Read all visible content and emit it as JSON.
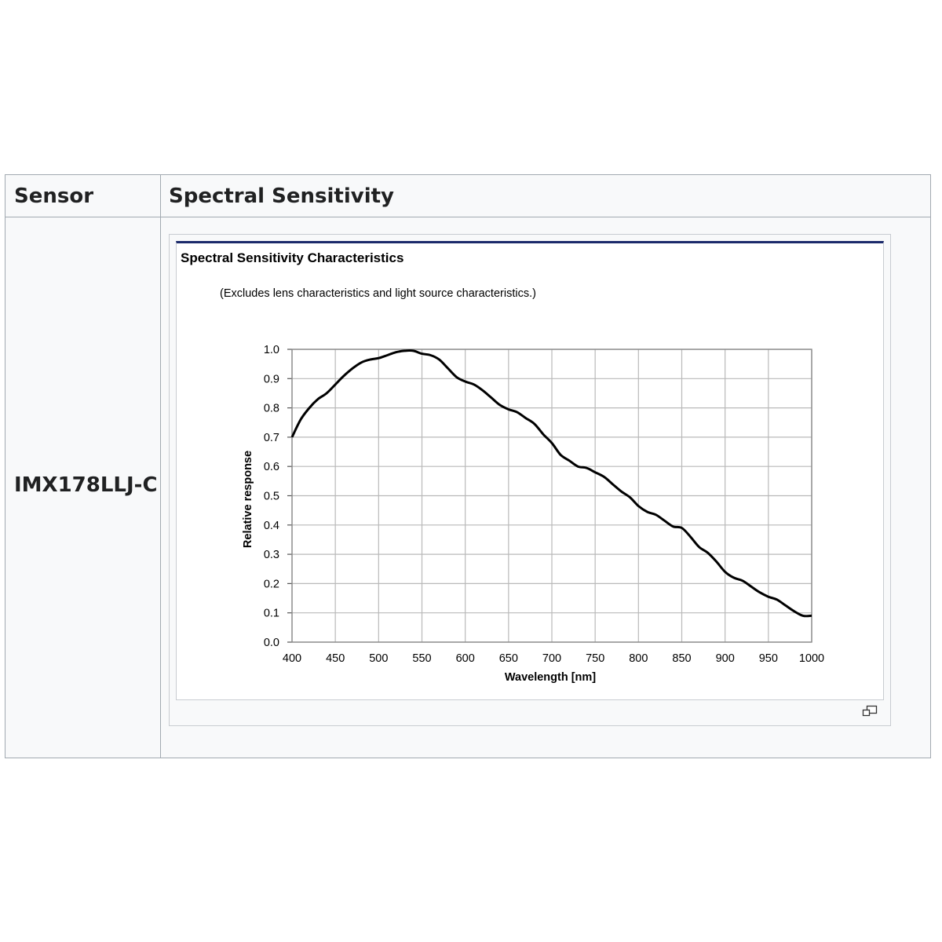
{
  "table": {
    "header_sensor": "Sensor",
    "header_spectral": "Spectral Sensitivity",
    "sensor_name": "IMX178LLJ-C"
  },
  "figure": {
    "title": "Spectral Sensitivity Characteristics",
    "note": "(Excludes lens characteristics and light source characteristics.)",
    "magnify_icon": "magnify-clip-icon"
  },
  "chart_data": {
    "type": "line",
    "title": "Spectral Sensitivity Characteristics",
    "subtitle": "(Excludes lens characteristics and light source characteristics.)",
    "xlabel": "Wavelength [nm]",
    "ylabel": "Relative response",
    "xlim": [
      400,
      1000
    ],
    "ylim": [
      0.0,
      1.0
    ],
    "xticks": [
      "400",
      "450",
      "500",
      "550",
      "600",
      "650",
      "700",
      "750",
      "800",
      "850",
      "900",
      "950",
      "1000"
    ],
    "yticks": [
      "0.0",
      "0.1",
      "0.2",
      "0.3",
      "0.4",
      "0.5",
      "0.6",
      "0.7",
      "0.8",
      "0.9",
      "1.0"
    ],
    "grid": true,
    "line_color": "#000000",
    "series": [
      {
        "x": [
          400,
          410,
          420,
          430,
          440,
          450,
          460,
          470,
          480,
          490,
          500,
          510,
          520,
          530,
          540,
          550,
          560,
          570,
          580,
          590,
          600,
          610,
          620,
          630,
          640,
          650,
          660,
          670,
          680,
          690,
          700,
          710,
          720,
          730,
          740,
          750,
          760,
          770,
          780,
          790,
          800,
          810,
          820,
          830,
          840,
          850,
          860,
          870,
          880,
          890,
          900,
          910,
          920,
          930,
          940,
          950,
          960,
          970,
          980,
          990,
          1000
        ],
        "y": [
          0.7,
          0.76,
          0.8,
          0.83,
          0.85,
          0.88,
          0.91,
          0.935,
          0.955,
          0.965,
          0.97,
          0.98,
          0.99,
          0.995,
          0.995,
          0.985,
          0.98,
          0.965,
          0.935,
          0.905,
          0.89,
          0.88,
          0.86,
          0.835,
          0.81,
          0.795,
          0.785,
          0.765,
          0.745,
          0.71,
          0.68,
          0.64,
          0.62,
          0.6,
          0.595,
          0.58,
          0.565,
          0.54,
          0.515,
          0.495,
          0.465,
          0.445,
          0.435,
          0.415,
          0.395,
          0.39,
          0.36,
          0.325,
          0.305,
          0.275,
          0.24,
          0.22,
          0.21,
          0.19,
          0.17,
          0.155,
          0.145,
          0.125,
          0.105,
          0.09,
          0.09
        ]
      }
    ]
  }
}
